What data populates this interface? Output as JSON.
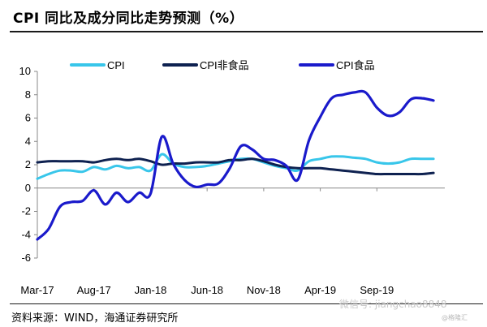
{
  "header": {
    "title": "CPI 同比及成分同比走势预测（%）"
  },
  "footer": {
    "source": "资料来源：WIND，海通证券研究所",
    "watermark": "微信号: jiangchao8848",
    "watermark_small": "@格隆汇"
  },
  "colors": {
    "cpi": "#38c6ea",
    "cpi_nonfood": "#0e2150",
    "cpi_food": "#1a1acb"
  },
  "chart_data": {
    "type": "line",
    "title": "CPI 同比及成分同比走势预测（%）",
    "xlabel": "",
    "ylabel": "",
    "ylim": [
      -6,
      10
    ],
    "yticks": [
      -6,
      -4,
      -2,
      0,
      2,
      4,
      6,
      8,
      10
    ],
    "ytick_labels": [
      "-6",
      "-4",
      "-2",
      "0",
      "2",
      "4",
      "6",
      "8",
      "10"
    ],
    "x_start": "2017-03",
    "x_end": "2020-03",
    "x_ticks": [
      {
        "label": "Mar-17",
        "month": "2017-03"
      },
      {
        "label": "Aug-17",
        "month": "2017-08"
      },
      {
        "label": "Jan-18",
        "month": "2018-01"
      },
      {
        "label": "Jun-18",
        "month": "2018-06"
      },
      {
        "label": "Nov-18",
        "month": "2018-11"
      },
      {
        "label": "Apr-19",
        "month": "2019-04"
      },
      {
        "label": "Sep-19",
        "month": "2019-09"
      }
    ],
    "grid": false,
    "legend_position": "top",
    "series": [
      {
        "name": "CPI",
        "color": "#38c6ea",
        "points": [
          [
            "2017-03",
            0.8
          ],
          [
            "2017-04",
            1.2
          ],
          [
            "2017-05",
            1.5
          ],
          [
            "2017-06",
            1.5
          ],
          [
            "2017-07",
            1.4
          ],
          [
            "2017-08",
            1.8
          ],
          [
            "2017-09",
            1.6
          ],
          [
            "2017-10",
            1.9
          ],
          [
            "2017-11",
            1.7
          ],
          [
            "2017-12",
            1.8
          ],
          [
            "2018-01",
            1.5
          ],
          [
            "2018-02",
            2.9
          ],
          [
            "2018-03",
            2.1
          ],
          [
            "2018-04",
            1.8
          ],
          [
            "2018-05",
            1.8
          ],
          [
            "2018-06",
            1.9
          ],
          [
            "2018-07",
            2.1
          ],
          [
            "2018-08",
            2.3
          ],
          [
            "2018-09",
            2.5
          ],
          [
            "2018-10",
            2.5
          ],
          [
            "2018-11",
            2.2
          ],
          [
            "2018-12",
            1.9
          ],
          [
            "2019-01",
            1.7
          ],
          [
            "2019-02",
            1.5
          ],
          [
            "2019-03",
            2.3
          ],
          [
            "2019-04",
            2.5
          ],
          [
            "2019-05",
            2.7
          ],
          [
            "2019-06",
            2.7
          ],
          [
            "2019-07",
            2.6
          ],
          [
            "2019-08",
            2.5
          ],
          [
            "2019-09",
            2.2
          ],
          [
            "2019-10",
            2.1
          ],
          [
            "2019-11",
            2.2
          ],
          [
            "2019-12",
            2.5
          ],
          [
            "2020-01",
            2.5
          ],
          [
            "2020-02",
            2.5
          ]
        ]
      },
      {
        "name": "CPI非食品",
        "color": "#0e2150",
        "points": [
          [
            "2017-03",
            2.2
          ],
          [
            "2017-04",
            2.3
          ],
          [
            "2017-05",
            2.3
          ],
          [
            "2017-06",
            2.3
          ],
          [
            "2017-07",
            2.3
          ],
          [
            "2017-08",
            2.2
          ],
          [
            "2017-09",
            2.4
          ],
          [
            "2017-10",
            2.5
          ],
          [
            "2017-11",
            2.4
          ],
          [
            "2017-12",
            2.5
          ],
          [
            "2018-01",
            2.3
          ],
          [
            "2018-02",
            2.0
          ],
          [
            "2018-03",
            2.1
          ],
          [
            "2018-04",
            2.1
          ],
          [
            "2018-05",
            2.2
          ],
          [
            "2018-06",
            2.2
          ],
          [
            "2018-07",
            2.2
          ],
          [
            "2018-08",
            2.4
          ],
          [
            "2018-09",
            2.4
          ],
          [
            "2018-10",
            2.5
          ],
          [
            "2018-11",
            2.3
          ],
          [
            "2018-12",
            2.0
          ],
          [
            "2019-01",
            1.8
          ],
          [
            "2019-02",
            1.7
          ],
          [
            "2019-03",
            1.7
          ],
          [
            "2019-04",
            1.7
          ],
          [
            "2019-05",
            1.6
          ],
          [
            "2019-06",
            1.5
          ],
          [
            "2019-07",
            1.4
          ],
          [
            "2019-08",
            1.3
          ],
          [
            "2019-09",
            1.2
          ],
          [
            "2019-10",
            1.2
          ],
          [
            "2019-11",
            1.2
          ],
          [
            "2019-12",
            1.2
          ],
          [
            "2020-01",
            1.2
          ],
          [
            "2020-02",
            1.3
          ]
        ]
      },
      {
        "name": "CPI食品",
        "color": "#1a1acb",
        "points": [
          [
            "2017-03",
            -4.4
          ],
          [
            "2017-04",
            -3.5
          ],
          [
            "2017-05",
            -1.6
          ],
          [
            "2017-06",
            -1.2
          ],
          [
            "2017-07",
            -1.1
          ],
          [
            "2017-08",
            -0.2
          ],
          [
            "2017-09",
            -1.4
          ],
          [
            "2017-10",
            -0.4
          ],
          [
            "2017-11",
            -1.2
          ],
          [
            "2017-12",
            -0.4
          ],
          [
            "2018-01",
            -0.5
          ],
          [
            "2018-02",
            4.4
          ],
          [
            "2018-03",
            2.1
          ],
          [
            "2018-04",
            0.7
          ],
          [
            "2018-05",
            0.1
          ],
          [
            "2018-06",
            0.3
          ],
          [
            "2018-07",
            0.4
          ],
          [
            "2018-08",
            1.7
          ],
          [
            "2018-09",
            3.6
          ],
          [
            "2018-10",
            3.3
          ],
          [
            "2018-11",
            2.5
          ],
          [
            "2018-12",
            2.4
          ],
          [
            "2019-01",
            1.9
          ],
          [
            "2019-02",
            0.7
          ],
          [
            "2019-03",
            4.1
          ],
          [
            "2019-04",
            6.1
          ],
          [
            "2019-05",
            7.7
          ],
          [
            "2019-06",
            8.0
          ],
          [
            "2019-07",
            8.2
          ],
          [
            "2019-08",
            8.2
          ],
          [
            "2019-09",
            6.9
          ],
          [
            "2019-10",
            6.2
          ],
          [
            "2019-11",
            6.5
          ],
          [
            "2019-12",
            7.6
          ],
          [
            "2020-01",
            7.7
          ],
          [
            "2020-02",
            7.5
          ]
        ]
      }
    ]
  }
}
